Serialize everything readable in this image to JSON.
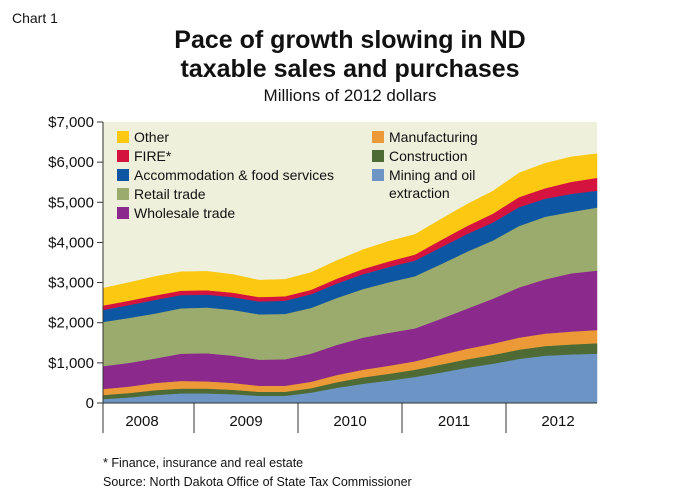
{
  "header": {
    "chart_number": "Chart 1",
    "title_line1": "Pace of growth slowing in ND",
    "title_line2": "taxable sales and purchases",
    "subtitle": "Millions of 2012 dollars"
  },
  "footer": {
    "note": "* Finance, insurance and real estate",
    "source": "Source: North Dakota Office of State Tax Commissioner"
  },
  "colors": {
    "plot_background": "#eef0dc",
    "axis": "#333333"
  },
  "chart_data": {
    "type": "area",
    "stacked": true,
    "title": "Pace of growth slowing in ND taxable sales and purchases",
    "subtitle": "Millions of 2012 dollars",
    "x": [
      "2008 Q1",
      "2008 Q2",
      "2008 Q3",
      "2008 Q4",
      "2009 Q1",
      "2009 Q2",
      "2009 Q3",
      "2009 Q4",
      "2010 Q1",
      "2010 Q2",
      "2010 Q3",
      "2010 Q4",
      "2011 Q1",
      "2011 Q2",
      "2011 Q3",
      "2011 Q4",
      "2012 Q1",
      "2012 Q2",
      "2012 Q3",
      "2012 Q4"
    ],
    "x_tick_labels": [
      "2008",
      "2009",
      "2010",
      "2011",
      "2012"
    ],
    "ylim": [
      0,
      7000
    ],
    "y_ticks": [
      0,
      1000,
      2000,
      3000,
      4000,
      5000,
      6000,
      7000
    ],
    "y_tick_labels": [
      "0",
      "$1,000",
      "$2,000",
      "$3,000",
      "$4,000",
      "$5,000",
      "$6,000",
      "$7,000"
    ],
    "grid": false,
    "legend_position": "top",
    "series": [
      {
        "name": "Mining and oil extraction",
        "legend_lines": [
          "Mining and oil",
          "extraction"
        ],
        "color": "#6c95c6",
        "values": [
          100,
          140,
          200,
          240,
          240,
          220,
          180,
          180,
          260,
          380,
          480,
          560,
          650,
          760,
          880,
          980,
          1100,
          1180,
          1210,
          1230
        ]
      },
      {
        "name": "Construction",
        "legend_lines": [
          "Construction"
        ],
        "color": "#4e6b35",
        "values": [
          100,
          110,
          120,
          120,
          120,
          110,
          100,
          100,
          110,
          140,
          160,
          170,
          180,
          200,
          210,
          220,
          230,
          240,
          250,
          260
        ]
      },
      {
        "name": "Manufacturing",
        "legend_lines": [
          "Manufacturing"
        ],
        "color": "#ec9a37",
        "values": [
          150,
          160,
          180,
          190,
          180,
          170,
          150,
          150,
          160,
          180,
          190,
          200,
          210,
          240,
          260,
          280,
          300,
          310,
          320,
          330
        ]
      },
      {
        "name": "Wholesale trade",
        "legend_lines": [
          "Wholesale trade"
        ],
        "color": "#8b2a8c",
        "values": [
          570,
          590,
          610,
          680,
          700,
          680,
          650,
          660,
          700,
          750,
          800,
          820,
          820,
          900,
          1000,
          1120,
          1250,
          1350,
          1450,
          1480
        ]
      },
      {
        "name": "Retail trade",
        "legend_lines": [
          "Retail trade"
        ],
        "color": "#9aab6d",
        "values": [
          1100,
          1120,
          1120,
          1130,
          1140,
          1140,
          1130,
          1130,
          1140,
          1170,
          1210,
          1260,
          1300,
          1360,
          1420,
          1450,
          1530,
          1560,
          1530,
          1570
        ]
      },
      {
        "name": "Accommodation & food services",
        "legend_lines": [
          "Accommodation & food services"
        ],
        "color": "#0c56a3",
        "values": [
          300,
          320,
          340,
          330,
          320,
          320,
          320,
          330,
          340,
          360,
          370,
          380,
          390,
          420,
          440,
          450,
          470,
          450,
          450,
          420
        ]
      },
      {
        "name": "FIRE*",
        "legend_lines": [
          "FIRE*"
        ],
        "color": "#d4143f",
        "values": [
          110,
          110,
          110,
          110,
          110,
          110,
          110,
          110,
          110,
          120,
          130,
          140,
          150,
          180,
          200,
          220,
          250,
          260,
          300,
          320
        ]
      },
      {
        "name": "Other",
        "legend_lines": [
          "Other"
        ],
        "color": "#fcc812",
        "values": [
          430,
          450,
          470,
          470,
          470,
          450,
          420,
          420,
          430,
          450,
          480,
          500,
          500,
          520,
          540,
          560,
          600,
          620,
          620,
          600
        ]
      }
    ]
  }
}
